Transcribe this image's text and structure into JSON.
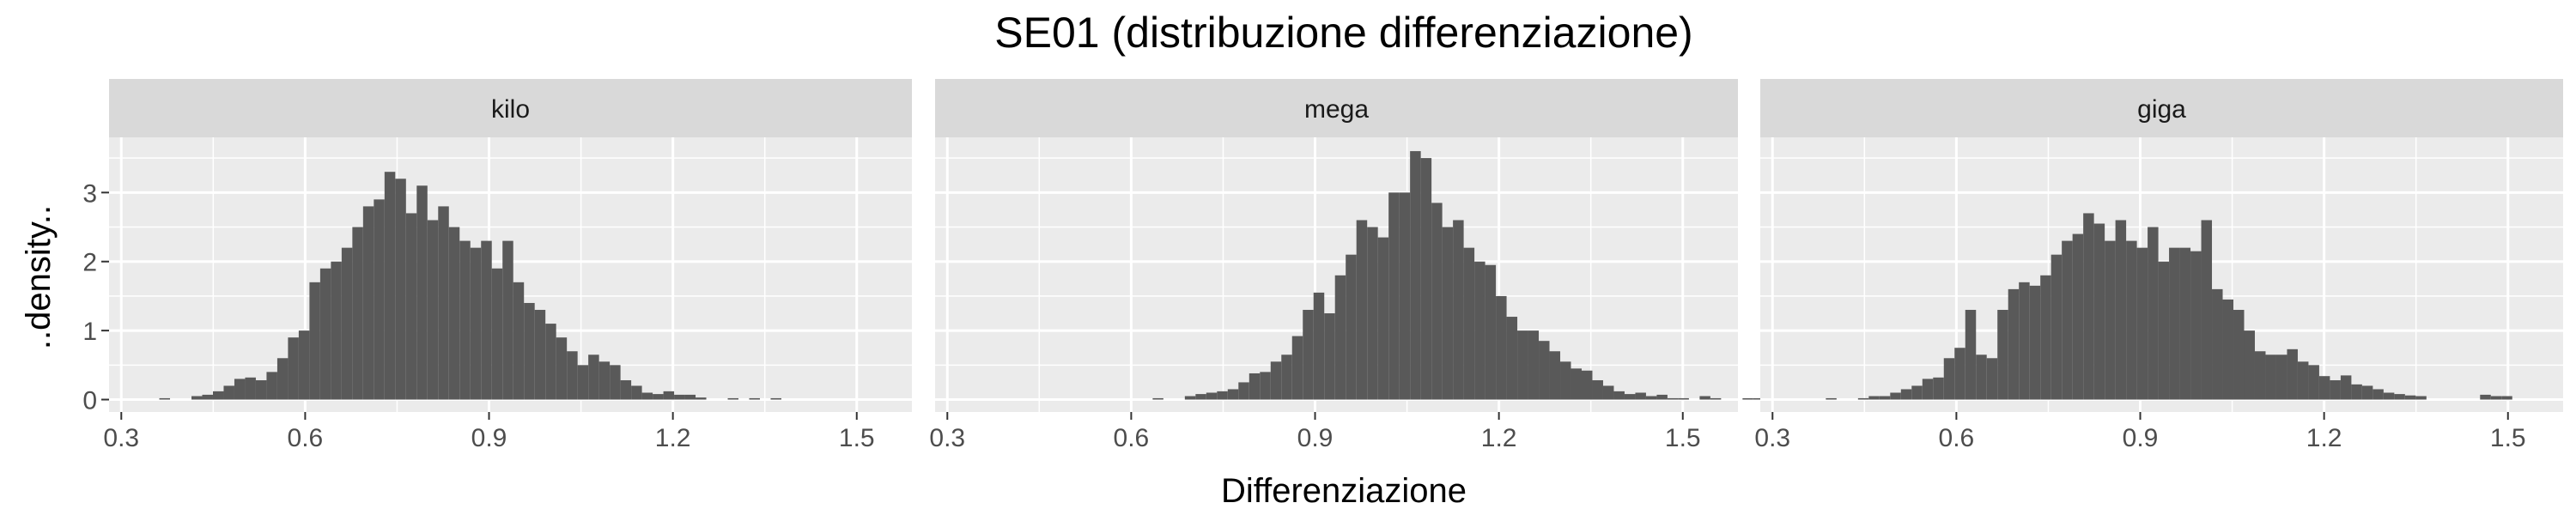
{
  "chart_data": {
    "type": "bar",
    "title": "SE01 (distribuzione differenziazione)",
    "xlabel": "Differenziazione",
    "ylabel": "..density..",
    "xlim": [
      0.28,
      1.59
    ],
    "ylim": [
      -0.18,
      3.8
    ],
    "x_ticks": [
      0.3,
      0.6,
      0.9,
      1.2,
      1.5
    ],
    "x_tick_labels": [
      "0.3",
      "0.6",
      "0.9",
      "1.2",
      "1.5"
    ],
    "y_ticks": [
      0,
      1,
      2,
      3
    ],
    "y_tick_labels": [
      "0",
      "1",
      "2",
      "3"
    ],
    "bin_width": 0.0175,
    "grid": true,
    "colors": {
      "bar": "#595959",
      "panel_bg": "#ebebeb",
      "strip_bg": "#d9d9d9",
      "grid": "#ffffff"
    },
    "facets": [
      {
        "name": "kilo",
        "bin_start": 0.362,
        "values": [
          0.02,
          0.0,
          0.0,
          0.05,
          0.07,
          0.12,
          0.2,
          0.3,
          0.32,
          0.28,
          0.4,
          0.6,
          0.9,
          1.0,
          1.7,
          1.9,
          2.0,
          2.2,
          2.5,
          2.8,
          2.9,
          3.3,
          3.2,
          2.7,
          3.1,
          2.6,
          2.8,
          2.5,
          2.3,
          2.2,
          2.3,
          1.9,
          2.3,
          1.7,
          1.4,
          1.3,
          1.1,
          0.9,
          0.7,
          0.5,
          0.65,
          0.55,
          0.5,
          0.28,
          0.2,
          0.1,
          0.08,
          0.12,
          0.07,
          0.07,
          0.03,
          0.0,
          0.0,
          0.02,
          0.0,
          0.02,
          0.0,
          0.02
        ]
      },
      {
        "name": "mega",
        "bin_start": 0.635,
        "values": [
          0.02,
          0.0,
          0.0,
          0.05,
          0.08,
          0.1,
          0.12,
          0.15,
          0.25,
          0.38,
          0.4,
          0.55,
          0.65,
          0.92,
          1.3,
          1.55,
          1.25,
          1.8,
          2.1,
          2.6,
          2.5,
          2.35,
          3.0,
          3.0,
          3.6,
          3.5,
          2.85,
          2.5,
          2.6,
          2.2,
          2.0,
          1.95,
          1.5,
          1.2,
          1.0,
          1.0,
          0.85,
          0.7,
          0.55,
          0.45,
          0.42,
          0.28,
          0.2,
          0.12,
          0.08,
          0.1,
          0.05,
          0.07,
          0.02,
          0.02,
          0.0,
          0.05,
          0.02,
          0.0,
          0.0,
          0.02,
          0.02,
          0.0
        ]
      },
      {
        "name": "giga",
        "bin_start": 0.387,
        "values": [
          0.02,
          0.0,
          0.0,
          0.02,
          0.05,
          0.05,
          0.1,
          0.15,
          0.2,
          0.3,
          0.32,
          0.6,
          0.75,
          1.3,
          0.65,
          0.6,
          1.3,
          1.6,
          1.7,
          1.65,
          1.8,
          2.1,
          2.3,
          2.4,
          2.7,
          2.55,
          2.3,
          2.6,
          2.3,
          2.2,
          2.5,
          2.0,
          2.2,
          2.2,
          2.15,
          2.6,
          1.6,
          1.45,
          1.3,
          1.0,
          0.7,
          0.65,
          0.65,
          0.73,
          0.55,
          0.5,
          0.34,
          0.28,
          0.35,
          0.22,
          0.2,
          0.15,
          0.1,
          0.08,
          0.06,
          0.05,
          0.0,
          0.0,
          0.0,
          0.0,
          0.0,
          0.07,
          0.05,
          0.05,
          0.0,
          0.0
        ]
      }
    ]
  }
}
